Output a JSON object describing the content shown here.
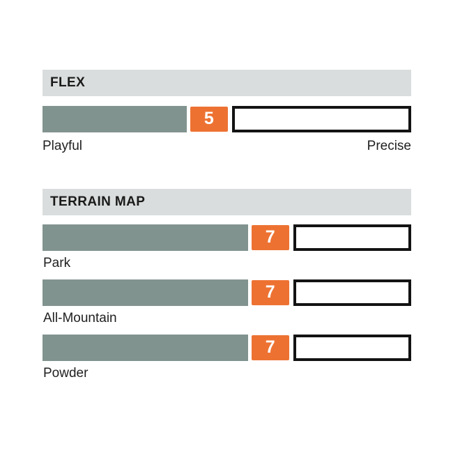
{
  "colors": {
    "section_header_bg": "#DADDDD",
    "bar_fill": "#81938F",
    "badge_bg": "#ED7232",
    "badge_text": "#FFFFFF",
    "track_border": "#131313",
    "text": "#1F1F1F",
    "background": "#FFFFFF"
  },
  "chart_data": [
    {
      "type": "bar",
      "title": "FLEX",
      "categories": [
        "Flex"
      ],
      "values": [
        5
      ],
      "value_range": [
        0,
        10
      ],
      "endpoint_labels": [
        "Playful",
        "Precise"
      ],
      "legend": "none",
      "grid": "off"
    },
    {
      "type": "bar",
      "title": "TERRAIN MAP",
      "categories": [
        "Park",
        "All-Mountain",
        "Powder"
      ],
      "values": [
        7,
        7,
        7
      ],
      "value_range": [
        0,
        10
      ],
      "legend": "none",
      "grid": "off"
    }
  ]
}
